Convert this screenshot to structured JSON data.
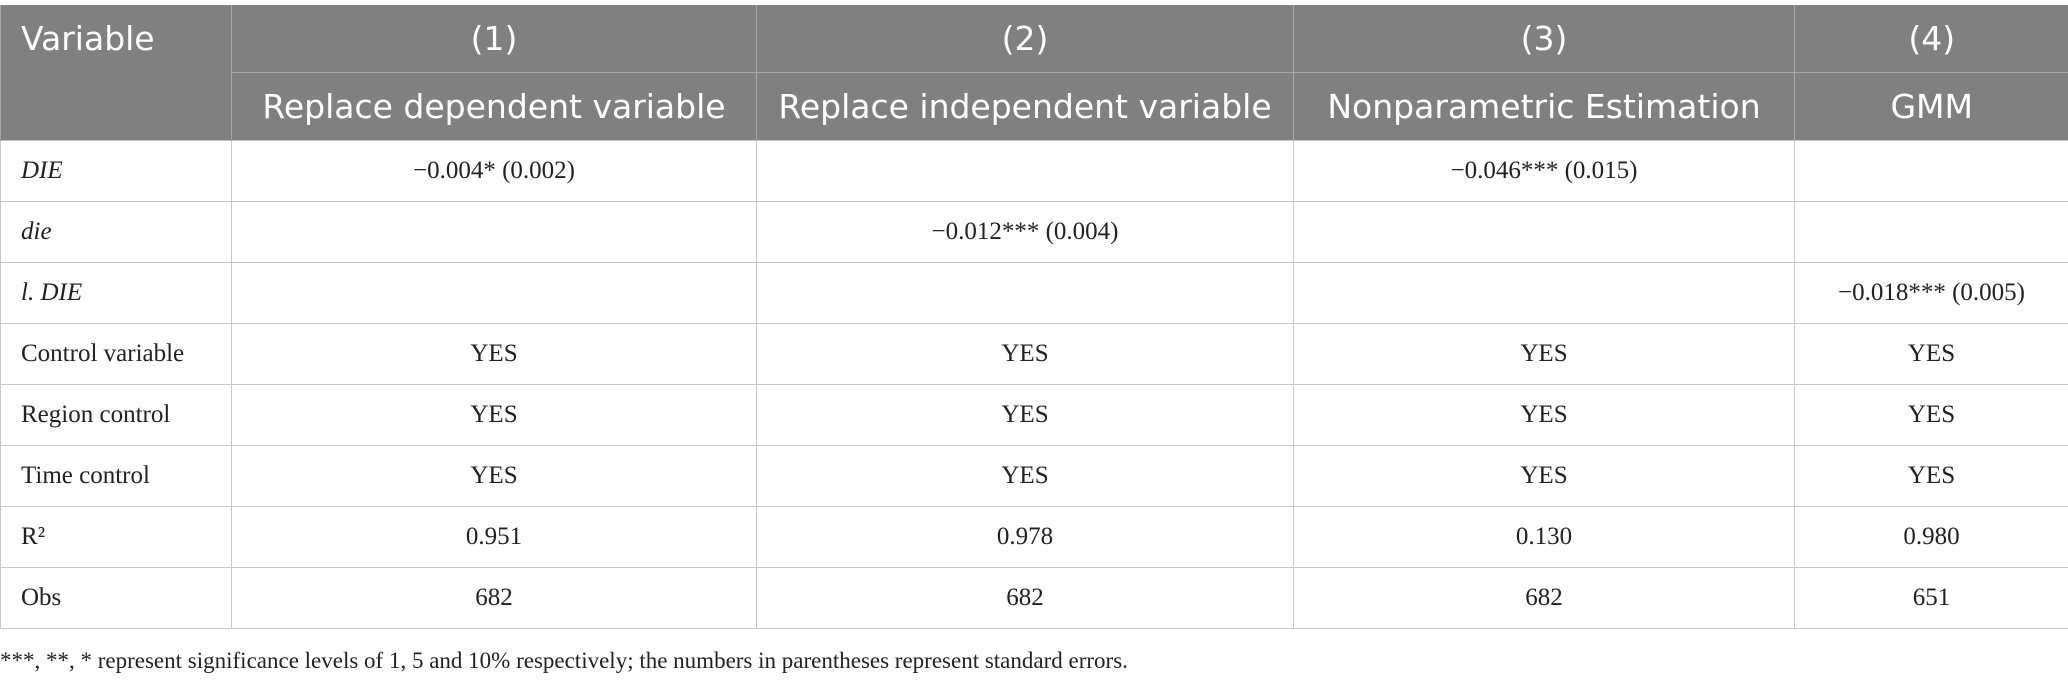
{
  "table": {
    "header": {
      "variable": "Variable",
      "numbers": [
        "(1)",
        "(2)",
        "(3)",
        "(4)"
      ],
      "titles": [
        "Replace dependent variable",
        "Replace independent variable",
        "Nonparametric Estimation",
        "GMM"
      ]
    },
    "rows": [
      [
        "DIE",
        "−0.004* (0.002)",
        null,
        "−0.046*** (0.015)",
        null
      ],
      [
        "die",
        null,
        "−0.012*** (0.004)",
        null,
        null
      ],
      [
        "l. DIE",
        null,
        null,
        null,
        "−0.018*** (0.005)"
      ],
      [
        "Control variable",
        "YES",
        "YES",
        "YES",
        "YES"
      ],
      [
        "Region control",
        "YES",
        "YES",
        "YES",
        "YES"
      ],
      [
        "Time control",
        "YES",
        "YES",
        "YES",
        "YES"
      ],
      [
        "R²",
        "0.951",
        "0.978",
        "0.130",
        "0.980"
      ],
      [
        "Obs",
        "682",
        "682",
        "682",
        "651"
      ]
    ],
    "italic_rows": [
      0,
      1,
      2
    ],
    "note": "***, **, * represent significance levels of 1, 5 and 10% respectively; the numbers in parentheses represent standard errors."
  }
}
